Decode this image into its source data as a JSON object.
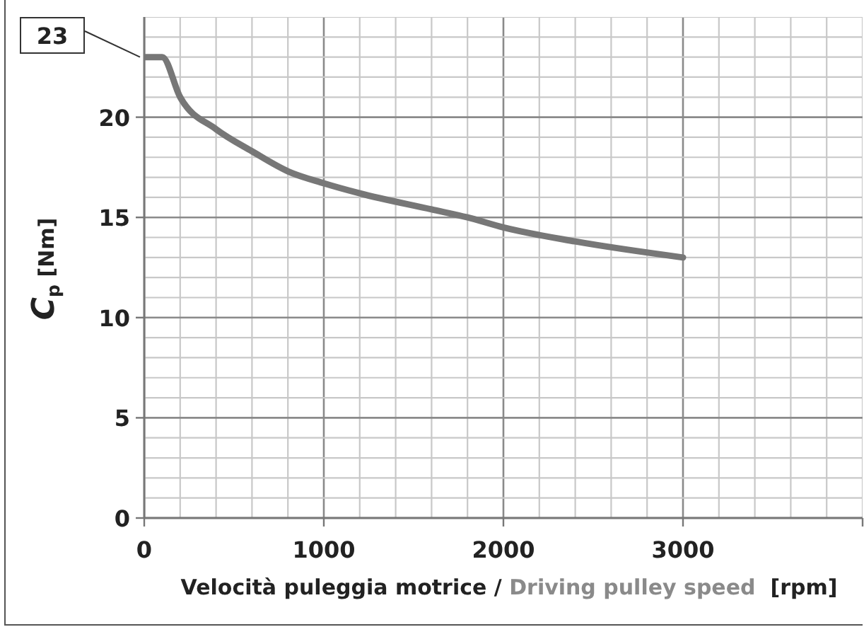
{
  "chart_data": {
    "type": "line",
    "xlabel": "Velocità puleggia motrice / Driving pulley speed  [rpm]",
    "ylabel": "C$_{p}$ [Nm]",
    "annotations": [
      {
        "text": "23",
        "x": 0,
        "y": 23
      }
    ],
    "x": [
      0,
      100,
      200,
      400,
      600,
      800,
      1000,
      1200,
      1600,
      1800,
      2000,
      2400,
      3000
    ],
    "series": [
      {
        "color": "#777777",
        "values": [
          23,
          23,
          21,
          19.4,
          18.3,
          17.3,
          16.7,
          16.2,
          15.4,
          15.0,
          14.5,
          13.8,
          13.0
        ]
      }
    ],
    "xlim": [
      0,
      4000
    ],
    "xticks": [
      0,
      {
        "value": 200,
        "label": null
      },
      {
        "value": 400,
        "label": null
      },
      {
        "value": 600,
        "label": null
      },
      {
        "value": 800,
        "label": null
      },
      1000,
      {
        "value": 1200,
        "label": null
      },
      {
        "value": 1400,
        "label": null
      },
      {
        "value": 1600,
        "label": null
      },
      {
        "value": 1800,
        "label": null
      },
      2000,
      {
        "value": 2200,
        "label": null
      },
      {
        "value": 2400,
        "label": null
      },
      {
        "value": 2600,
        "label": null
      },
      {
        "value": 2800,
        "label": null
      },
      3000,
      {
        "value": 3200,
        "label": null
      },
      {
        "value": 3400,
        "label": null
      },
      {
        "value": 3600,
        "label": null
      },
      {
        "value": 3800,
        "label": null
      },
      {
        "value": 4000,
        "label": null
      }
    ],
    "ylim": [
      0,
      25
    ],
    "yticks": [
      0,
      {
        "value": 1,
        "label": null
      },
      {
        "value": 2,
        "label": null
      },
      {
        "value": 3,
        "label": null
      },
      {
        "value": 4,
        "label": null
      },
      5,
      {
        "value": 6,
        "label": null
      },
      {
        "value": 7,
        "label": null
      },
      {
        "value": 8,
        "label": null
      },
      {
        "value": 9,
        "label": null
      },
      10,
      {
        "value": 11,
        "label": null
      },
      {
        "value": 12,
        "label": null
      },
      {
        "value": 13,
        "label": null
      },
      {
        "value": 14,
        "label": null
      },
      15,
      {
        "value": 16,
        "label": null
      },
      {
        "value": 17,
        "label": null
      },
      {
        "value": 18,
        "label": null
      },
      {
        "value": 19,
        "label": null
      },
      20,
      {
        "value": 21,
        "label": null
      },
      {
        "value": 22,
        "label": null
      },
      {
        "value": 23,
        "label": null
      },
      {
        "value": 24,
        "label": null
      },
      {
        "value": 25,
        "label": null
      }
    ],
    "grid": true,
    "marker": "none",
    "line_style": "solid"
  }
}
